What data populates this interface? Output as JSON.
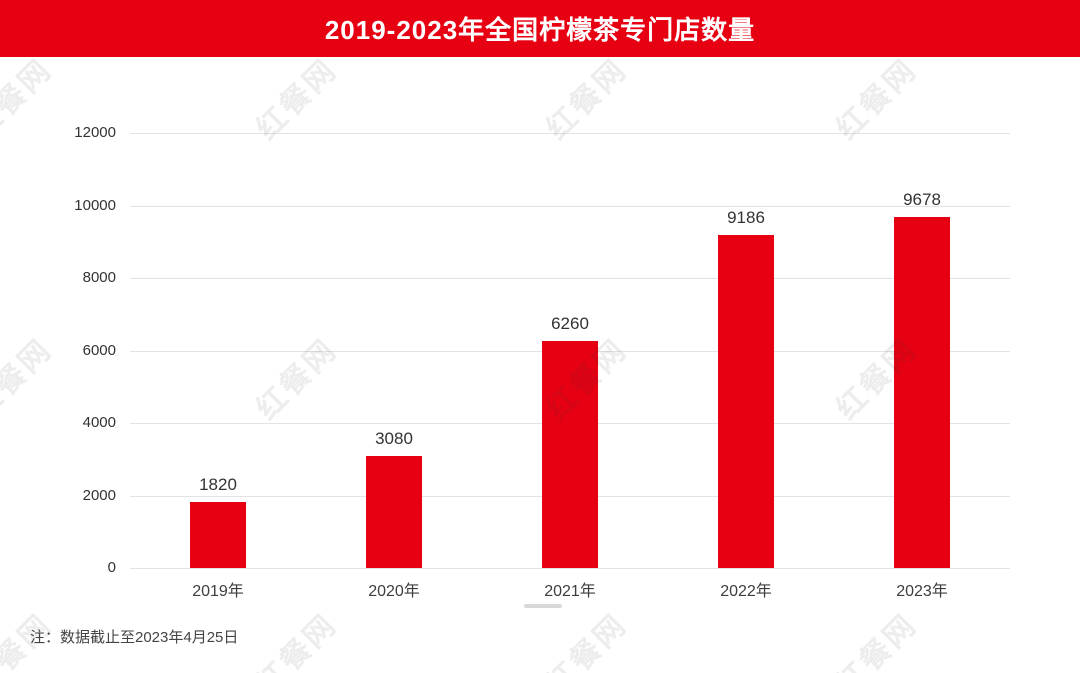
{
  "header": {
    "title": "2019-2023年全国柠檬茶专门店数量",
    "bg_color": "#e60012",
    "text_color": "#ffffff"
  },
  "note": "注：数据截止至2023年4月25日",
  "watermark": {
    "text": "红餐网"
  },
  "chart_data": {
    "type": "bar",
    "title": "2019-2023年全国柠檬茶专门店数量",
    "categories": [
      "2019年",
      "2020年",
      "2021年",
      "2022年",
      "2023年"
    ],
    "values": [
      1820,
      3080,
      6260,
      9186,
      9678
    ],
    "bar_color": "#e60012",
    "label_color": "#333333",
    "xlabel": "",
    "ylabel": "",
    "ylim": [
      0,
      12000
    ],
    "yticks": [
      0,
      2000,
      4000,
      6000,
      8000,
      10000,
      12000
    ],
    "grid": true,
    "legend_position": "none"
  }
}
